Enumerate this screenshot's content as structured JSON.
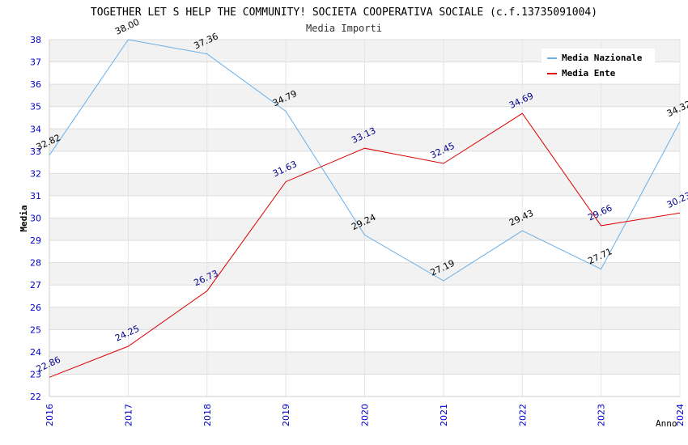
{
  "chart_data": {
    "type": "line",
    "title": "TOGETHER LET S HELP THE COMMUNITY! SOCIETA COOPERATIVA SOCIALE (c.f.13735091004)",
    "subtitle": "Media Importi",
    "xlabel": "Anno",
    "ylabel": "Media",
    "ylim": [
      22,
      38
    ],
    "yticks": [
      "22",
      "23",
      "24",
      "25",
      "26",
      "27",
      "28",
      "29",
      "30",
      "31",
      "32",
      "33",
      "34",
      "35",
      "36",
      "37",
      "38"
    ],
    "categories": [
      "2016",
      "2017",
      "2018",
      "2019",
      "2020",
      "2021",
      "2022",
      "2023",
      "2024"
    ],
    "legend_position": "top-right",
    "series": [
      {
        "name": "Media Nazionale",
        "color": "#6aaee6",
        "label_color": "#000000",
        "values": [
          32.82,
          38.0,
          37.36,
          34.79,
          29.24,
          27.19,
          29.43,
          27.71,
          34.32
        ],
        "labels": [
          "32.82",
          "38.00",
          "37.36",
          "34.79",
          "29.24",
          "27.19",
          "29.43",
          "27.71",
          "34.32"
        ]
      },
      {
        "name": "Media Ente",
        "color": "#dd0000",
        "label_color": "#00008b",
        "values": [
          22.86,
          24.25,
          26.73,
          31.63,
          33.13,
          32.45,
          34.69,
          29.66,
          30.23
        ],
        "labels": [
          "22.86",
          "24.25",
          "26.73",
          "31.63",
          "33.13",
          "32.45",
          "34.69",
          "29.66",
          "30.23"
        ]
      }
    ]
  }
}
